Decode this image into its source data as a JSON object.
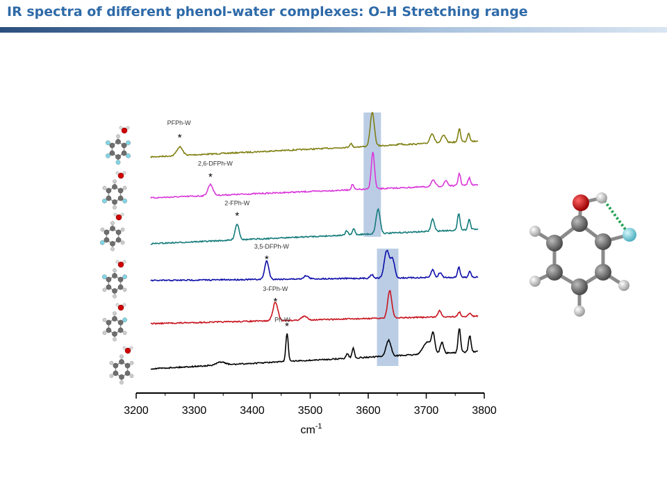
{
  "slide": {
    "title": "IR spectra of different phenol-water complexes: O–H Stretching range"
  },
  "chart_data": {
    "type": "line",
    "title": "",
    "xlabel": "cm",
    "xlabel_superscript": "-1",
    "ylabel": "",
    "xlim": [
      3200,
      3800
    ],
    "x_ticks": [
      3200,
      3300,
      3400,
      3500,
      3600,
      3700,
      3800
    ],
    "plot_x_start": 3225,
    "plot_x_end": 3790,
    "highlight_bands": [
      {
        "from": 3592,
        "to": 3622,
        "traces": [
          "PFPh-W",
          "2,6-DFPh-W",
          "2-FPh-W"
        ]
      },
      {
        "from": 3615,
        "to": 3652,
        "traces": [
          "3,5-DFPh-W",
          "3-FPh-W",
          "Ph-W"
        ]
      }
    ],
    "series": [
      {
        "name": "PFPh-W",
        "color": "#7f7f12",
        "baseline_start": 0.0,
        "baseline_end": 0.35,
        "peaks": [
          [
            3275,
            0.14,
            7
          ],
          [
            3570,
            0.06,
            3
          ],
          [
            3607,
            0.55,
            5
          ],
          [
            3655,
            0.02,
            4
          ],
          [
            3710,
            0.16,
            5
          ],
          [
            3730,
            0.12,
            5
          ],
          [
            3757,
            0.22,
            3
          ],
          [
            3773,
            0.14,
            3
          ]
        ],
        "marker_x": 3275
      },
      {
        "name": "2,6-DFPh-W",
        "color": "#d936d9",
        "baseline_start": 0.0,
        "baseline_end": 0.25,
        "peaks": [
          [
            3328,
            0.18,
            6
          ],
          [
            3573,
            0.09,
            3
          ],
          [
            3608,
            0.6,
            4
          ],
          [
            3712,
            0.1,
            5
          ],
          [
            3734,
            0.09,
            4
          ],
          [
            3757,
            0.2,
            3
          ],
          [
            3774,
            0.12,
            3
          ]
        ],
        "marker_x": 3328
      },
      {
        "name": "2-FPh-W",
        "color": "#137a7a",
        "baseline_start": 0.0,
        "baseline_end": 0.28,
        "peaks": [
          [
            3374,
            0.26,
            5
          ],
          [
            3563,
            0.07,
            3
          ],
          [
            3575,
            0.1,
            3
          ],
          [
            3617,
            0.4,
            5
          ],
          [
            3711,
            0.2,
            4
          ],
          [
            3756,
            0.28,
            3
          ],
          [
            3774,
            0.17,
            3
          ]
        ],
        "marker_x": 3374
      },
      {
        "name": "3,5-DFPh-W",
        "color": "#0c0ca8",
        "baseline_start": 0.0,
        "baseline_end": 0.12,
        "peaks": [
          [
            3425,
            0.3,
            5
          ],
          [
            3493,
            0.05,
            6
          ],
          [
            3606,
            0.06,
            4
          ],
          [
            3632,
            0.45,
            6
          ],
          [
            3642,
            0.3,
            5
          ],
          [
            3711,
            0.13,
            4
          ],
          [
            3724,
            0.08,
            4
          ],
          [
            3756,
            0.17,
            3
          ],
          [
            3775,
            0.1,
            3
          ]
        ],
        "marker_x": 3425
      },
      {
        "name": "3-FPh-W",
        "color": "#c8141e",
        "baseline_start": 0.0,
        "baseline_end": 0.14,
        "peaks": [
          [
            3440,
            0.3,
            6
          ],
          [
            3490,
            0.06,
            7
          ],
          [
            3637,
            0.45,
            5
          ],
          [
            3723,
            0.1,
            4
          ],
          [
            3757,
            0.07,
            3
          ],
          [
            3775,
            0.05,
            3
          ]
        ],
        "marker_x": 3440
      },
      {
        "name": "Ph-W",
        "color": "#000000",
        "baseline_start": 0.0,
        "baseline_end": 0.22,
        "peaks": [
          [
            3346,
            0.05,
            10
          ],
          [
            3460,
            0.46,
            3
          ],
          [
            3564,
            0.08,
            3
          ],
          [
            3574,
            0.16,
            3
          ],
          [
            3635,
            0.26,
            6
          ],
          [
            3702,
            0.2,
            10
          ],
          [
            3712,
            0.28,
            4
          ],
          [
            3727,
            0.18,
            4
          ],
          [
            3757,
            0.4,
            3
          ],
          [
            3775,
            0.27,
            3
          ]
        ],
        "marker_x": 3460
      }
    ],
    "marker_symbol": "*"
  },
  "colors": {
    "title": "#2e6aa8",
    "band": "#a9c0de",
    "oxygen": "#d00000",
    "carbon": "#6e6e6e",
    "hydrogen": "#e0e0e0",
    "fluorine": "#7fd6e6",
    "hbond": "#1fa050"
  }
}
